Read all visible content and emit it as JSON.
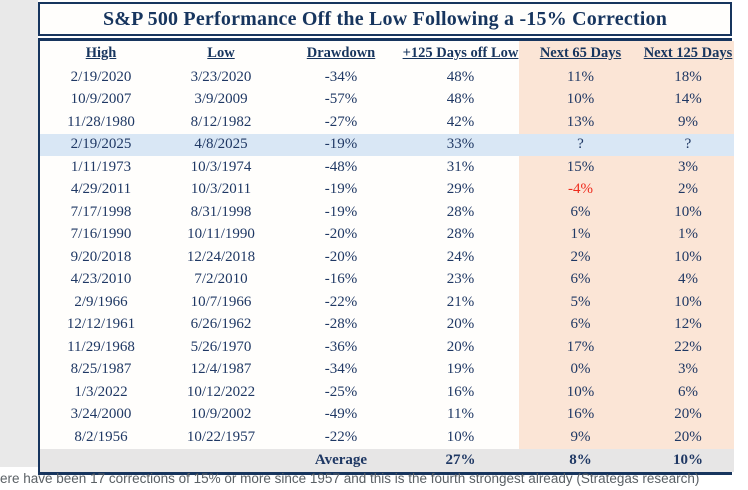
{
  "title": "S&P 500 Performance Off the Low Following a -15% Correction",
  "caption": "ere have been 17 corrections of 15% or more since 1957 and this is the fourth strongest already (Strategas research)",
  "chart_data": {
    "type": "table",
    "title": "S&P 500 Performance Off the Low Following a -15% Correction",
    "columns": [
      "High",
      "Low",
      "Drawdown",
      "+125 Days off Low",
      "Next 65 Days",
      "Next 125 Days"
    ],
    "rows": [
      [
        "2/19/2020",
        "3/23/2020",
        "-34%",
        "48%",
        "11%",
        "18%"
      ],
      [
        "10/9/2007",
        "3/9/2009",
        "-57%",
        "48%",
        "10%",
        "14%"
      ],
      [
        "11/28/1980",
        "8/12/1982",
        "-27%",
        "42%",
        "13%",
        "9%"
      ],
      [
        "2/19/2025",
        "4/8/2025",
        "-19%",
        "33%",
        "?",
        "?"
      ],
      [
        "1/11/1973",
        "10/3/1974",
        "-48%",
        "31%",
        "15%",
        "3%"
      ],
      [
        "4/29/2011",
        "10/3/2011",
        "-19%",
        "29%",
        "-4%",
        "2%"
      ],
      [
        "7/17/1998",
        "8/31/1998",
        "-19%",
        "28%",
        "6%",
        "10%"
      ],
      [
        "7/16/1990",
        "10/11/1990",
        "-20%",
        "28%",
        "1%",
        "1%"
      ],
      [
        "9/20/2018",
        "12/24/2018",
        "-20%",
        "24%",
        "2%",
        "10%"
      ],
      [
        "4/23/2010",
        "7/2/2010",
        "-16%",
        "23%",
        "6%",
        "4%"
      ],
      [
        "2/9/1966",
        "10/7/1966",
        "-22%",
        "21%",
        "5%",
        "10%"
      ],
      [
        "12/12/1961",
        "6/26/1962",
        "-28%",
        "20%",
        "6%",
        "12%"
      ],
      [
        "11/29/1968",
        "5/26/1970",
        "-36%",
        "20%",
        "17%",
        "22%"
      ],
      [
        "8/25/1987",
        "12/4/1987",
        "-34%",
        "19%",
        "0%",
        "3%"
      ],
      [
        "1/3/2022",
        "10/12/2022",
        "-25%",
        "16%",
        "10%",
        "6%"
      ],
      [
        "3/24/2000",
        "10/9/2002",
        "-49%",
        "11%",
        "16%",
        "20%"
      ],
      [
        "8/2/1956",
        "10/22/1957",
        "-22%",
        "10%",
        "9%",
        "20%"
      ]
    ],
    "highlighted_row_index": 3,
    "red_cell": {
      "row": 5,
      "col": 4,
      "value": "-4%"
    },
    "peach_column_start_index": 4,
    "average_row": {
      "label": "Average",
      "plus125": "27%",
      "next65": "8%",
      "next125": "10%"
    },
    "layout": {
      "grid": "off",
      "highlight_meaning": "current 2025 correction",
      "peach_meaning": "forward return columns"
    }
  },
  "colors": {
    "navy_text": "#17355e",
    "cell_text": "#1f3864",
    "peach_bg": "#fbe5d6",
    "highlight_blue_bg": "#d9e7f5",
    "average_gray_bg": "#e7e6e6",
    "negative_red": "#ee2c1e",
    "caption_gray": "#5a6065",
    "side_strip_gray": "#e9e9e9"
  }
}
